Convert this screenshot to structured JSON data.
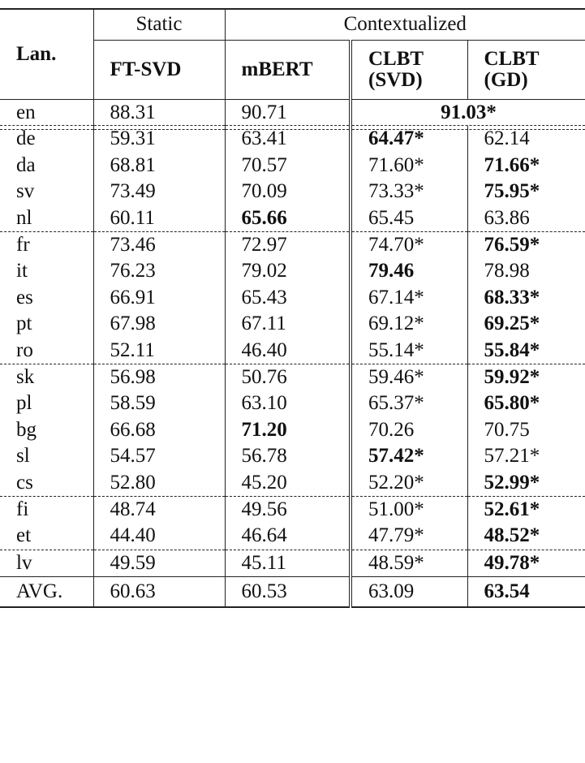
{
  "header": {
    "lan": "Lan.",
    "group_static": "Static",
    "group_contextualized": "Contextualized",
    "columns": [
      "FT-SVD",
      "mBERT",
      "CLBT\n(SVD)",
      "CLBT\n(GD)"
    ]
  },
  "en_row": {
    "lang": "en",
    "ft_svd": "88.31",
    "mbert": "90.71",
    "clbt_merged": "91.03*",
    "clbt_merged_bold": true
  },
  "groups": [
    [
      {
        "lang": "de",
        "cells": [
          {
            "v": "59.31"
          },
          {
            "v": "63.41"
          },
          {
            "v": "64.47*",
            "b": true
          },
          {
            "v": "62.14"
          }
        ]
      },
      {
        "lang": "da",
        "cells": [
          {
            "v": "68.81"
          },
          {
            "v": "70.57"
          },
          {
            "v": "71.60*"
          },
          {
            "v": "71.66*",
            "b": true
          }
        ]
      },
      {
        "lang": "sv",
        "cells": [
          {
            "v": "73.49"
          },
          {
            "v": "70.09"
          },
          {
            "v": "73.33*"
          },
          {
            "v": "75.95*",
            "b": true
          }
        ]
      },
      {
        "lang": "nl",
        "cells": [
          {
            "v": "60.11"
          },
          {
            "v": "65.66",
            "b": true
          },
          {
            "v": "65.45"
          },
          {
            "v": "63.86"
          }
        ]
      }
    ],
    [
      {
        "lang": "fr",
        "cells": [
          {
            "v": "73.46"
          },
          {
            "v": "72.97"
          },
          {
            "v": "74.70*"
          },
          {
            "v": "76.59*",
            "b": true
          }
        ]
      },
      {
        "lang": "it",
        "cells": [
          {
            "v": "76.23"
          },
          {
            "v": "79.02"
          },
          {
            "v": "79.46",
            "b": true
          },
          {
            "v": "78.98"
          }
        ]
      },
      {
        "lang": "es",
        "cells": [
          {
            "v": "66.91"
          },
          {
            "v": "65.43"
          },
          {
            "v": "67.14*"
          },
          {
            "v": "68.33*",
            "b": true
          }
        ]
      },
      {
        "lang": "pt",
        "cells": [
          {
            "v": "67.98"
          },
          {
            "v": "67.11"
          },
          {
            "v": "69.12*"
          },
          {
            "v": "69.25*",
            "b": true
          }
        ]
      },
      {
        "lang": "ro",
        "cells": [
          {
            "v": "52.11"
          },
          {
            "v": "46.40"
          },
          {
            "v": "55.14*"
          },
          {
            "v": "55.84*",
            "b": true
          }
        ]
      }
    ],
    [
      {
        "lang": "sk",
        "cells": [
          {
            "v": "56.98"
          },
          {
            "v": "50.76"
          },
          {
            "v": "59.46*"
          },
          {
            "v": "59.92*",
            "b": true
          }
        ]
      },
      {
        "lang": "pl",
        "cells": [
          {
            "v": "58.59"
          },
          {
            "v": "63.10"
          },
          {
            "v": "65.37*"
          },
          {
            "v": "65.80*",
            "b": true
          }
        ]
      },
      {
        "lang": "bg",
        "cells": [
          {
            "v": "66.68"
          },
          {
            "v": "71.20",
            "b": true
          },
          {
            "v": "70.26"
          },
          {
            "v": "70.75"
          }
        ]
      },
      {
        "lang": "sl",
        "cells": [
          {
            "v": "54.57"
          },
          {
            "v": "56.78"
          },
          {
            "v": "57.42*",
            "b": true
          },
          {
            "v": "57.21*"
          }
        ]
      },
      {
        "lang": "cs",
        "cells": [
          {
            "v": "52.80"
          },
          {
            "v": "45.20"
          },
          {
            "v": "52.20*"
          },
          {
            "v": "52.99*",
            "b": true
          }
        ]
      }
    ],
    [
      {
        "lang": "fi",
        "cells": [
          {
            "v": "48.74"
          },
          {
            "v": "49.56"
          },
          {
            "v": "51.00*"
          },
          {
            "v": "52.61*",
            "b": true
          }
        ]
      },
      {
        "lang": "et",
        "cells": [
          {
            "v": "44.40"
          },
          {
            "v": "46.64"
          },
          {
            "v": "47.79*"
          },
          {
            "v": "48.52*",
            "b": true
          }
        ]
      }
    ],
    [
      {
        "lang": "lv",
        "cells": [
          {
            "v": "49.59"
          },
          {
            "v": "45.11"
          },
          {
            "v": "48.59*"
          },
          {
            "v": "49.78*",
            "b": true
          }
        ]
      }
    ]
  ],
  "avg_row": {
    "lang": "AVG.",
    "cells": [
      {
        "v": "60.63"
      },
      {
        "v": "60.53"
      },
      {
        "v": "63.09"
      },
      {
        "v": "63.54",
        "b": true
      }
    ]
  }
}
